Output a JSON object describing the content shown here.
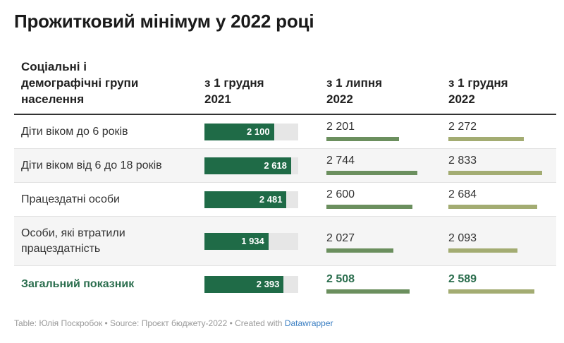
{
  "title": "Прожитковий мінімум у 2022 році",
  "headers": {
    "group": [
      "Соціальні і",
      "демографічні групи",
      "населення"
    ],
    "col1": [
      "з 1 грудня",
      "2021"
    ],
    "col2": [
      "з 1 липня",
      "2022"
    ],
    "col3": [
      "з 1 грудня",
      "2022"
    ]
  },
  "colors": {
    "bar_dark": "#1f6b47",
    "bar_mid": "#6b8f5e",
    "bar_light": "#a3ac72",
    "total_text": "#2b6e4e"
  },
  "chart_data": {
    "type": "table",
    "max_value": 2833,
    "columns": [
      "з 1 грудня 2021",
      "з 1 липня 2022",
      "з 1 грудня 2022"
    ],
    "rows": [
      {
        "label": [
          "Діти віком до 6 років"
        ],
        "values": [
          2100,
          2201,
          2272
        ],
        "labels": [
          "2 100",
          "2 201",
          "2 272"
        ],
        "total": false
      },
      {
        "label": [
          "Діти віком від 6 до 18 років"
        ],
        "values": [
          2618,
          2744,
          2833
        ],
        "labels": [
          "2 618",
          "2 744",
          "2 833"
        ],
        "total": false
      },
      {
        "label": [
          "Працездатні особи"
        ],
        "values": [
          2481,
          2600,
          2684
        ],
        "labels": [
          "2 481",
          "2 600",
          "2 684"
        ],
        "total": false
      },
      {
        "label": [
          "Особи, які втратили",
          "працездатність"
        ],
        "values": [
          1934,
          2027,
          2093
        ],
        "labels": [
          "1 934",
          "2 027",
          "2 093"
        ],
        "total": false
      },
      {
        "label": [
          "Загальний показник"
        ],
        "values": [
          2393,
          2508,
          2589
        ],
        "labels": [
          "2 393",
          "2 508",
          "2 589"
        ],
        "total": true
      }
    ]
  },
  "footer": {
    "prefix": "Table: Юлія Поскробок • Source: Проєкт бюджету-2022 • Created with ",
    "link": "Datawrapper"
  }
}
